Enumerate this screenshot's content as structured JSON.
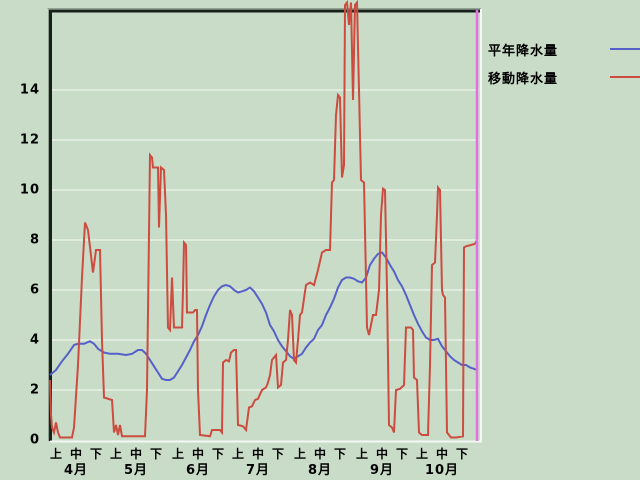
{
  "window": {
    "background_color": "#c9dcc8",
    "plot_frame": {
      "dark_edge_color": "#18201a",
      "bevel_shadow_color": "#93a193",
      "light_edge_color": "#f2f8f2",
      "gridline_color": "#e8f2e6"
    }
  },
  "legend": {
    "items": [
      {
        "label": "平年降水量",
        "color": "#5560c8"
      },
      {
        "label": "移動降水量",
        "color": "#cc4c40"
      }
    ]
  },
  "chart_data": {
    "type": "line",
    "title": "",
    "xlabel": "",
    "ylabel": "",
    "x_unit": "days from April 1; x-axis labeled by month (4月-10月) and ten-day periods 上/中/下",
    "y_ticks": [
      0,
      2,
      4,
      6,
      8,
      10,
      12,
      14
    ],
    "ylim": [
      0,
      17.2
    ],
    "grid": "horizontal-only",
    "legend_position": "outside-top-right",
    "period_labels": [
      "上",
      "中",
      "下"
    ],
    "period_day_offsets": [
      3,
      13,
      23
    ],
    "months": [
      {
        "label": "4月",
        "start": 0,
        "days": 30
      },
      {
        "label": "5月",
        "start": 30,
        "days": 31
      },
      {
        "label": "6月",
        "start": 61,
        "days": 30
      },
      {
        "label": "7月",
        "start": 91,
        "days": 31
      },
      {
        "label": "8月",
        "start": 122,
        "days": 31
      },
      {
        "label": "9月",
        "start": 153,
        "days": 30
      },
      {
        "label": "10月",
        "start": 183,
        "days": 31
      }
    ],
    "cursor": {
      "x_day": 213.5,
      "color": "#e46ee4"
    },
    "series": [
      {
        "name": "平年降水量",
        "color": "#5560c8",
        "points": [
          [
            0,
            2.6
          ],
          [
            3,
            2.8
          ],
          [
            6,
            3.15
          ],
          [
            9,
            3.45
          ],
          [
            12,
            3.8
          ],
          [
            14,
            3.85
          ],
          [
            17,
            3.85
          ],
          [
            20,
            3.95
          ],
          [
            22,
            3.85
          ],
          [
            24,
            3.65
          ],
          [
            27,
            3.5
          ],
          [
            30,
            3.45
          ],
          [
            34,
            3.45
          ],
          [
            38,
            3.4
          ],
          [
            41,
            3.45
          ],
          [
            44,
            3.6
          ],
          [
            46,
            3.6
          ],
          [
            48,
            3.45
          ],
          [
            50,
            3.2
          ],
          [
            52,
            2.95
          ],
          [
            54,
            2.7
          ],
          [
            56,
            2.45
          ],
          [
            58,
            2.4
          ],
          [
            60,
            2.4
          ],
          [
            62,
            2.5
          ],
          [
            64,
            2.75
          ],
          [
            66,
            3.0
          ],
          [
            68,
            3.3
          ],
          [
            70,
            3.6
          ],
          [
            72,
            3.95
          ],
          [
            74,
            4.2
          ],
          [
            76,
            4.55
          ],
          [
            78,
            5.0
          ],
          [
            80,
            5.4
          ],
          [
            82,
            5.75
          ],
          [
            84,
            6.0
          ],
          [
            86,
            6.15
          ],
          [
            88,
            6.2
          ],
          [
            90,
            6.15
          ],
          [
            92,
            6.0
          ],
          [
            94,
            5.9
          ],
          [
            96,
            5.95
          ],
          [
            98,
            6.0
          ],
          [
            100,
            6.1
          ],
          [
            102,
            5.95
          ],
          [
            104,
            5.7
          ],
          [
            106,
            5.45
          ],
          [
            108,
            5.1
          ],
          [
            110,
            4.6
          ],
          [
            112,
            4.35
          ],
          [
            114,
            4.0
          ],
          [
            116,
            3.75
          ],
          [
            118,
            3.55
          ],
          [
            120,
            3.35
          ],
          [
            122,
            3.25
          ],
          [
            124,
            3.35
          ],
          [
            126,
            3.45
          ],
          [
            128,
            3.7
          ],
          [
            130,
            3.9
          ],
          [
            132,
            4.05
          ],
          [
            134,
            4.4
          ],
          [
            136,
            4.6
          ],
          [
            138,
            5.0
          ],
          [
            140,
            5.3
          ],
          [
            142,
            5.65
          ],
          [
            144,
            6.1
          ],
          [
            146,
            6.4
          ],
          [
            148,
            6.5
          ],
          [
            150,
            6.5
          ],
          [
            152,
            6.45
          ],
          [
            154,
            6.35
          ],
          [
            156,
            6.3
          ],
          [
            158,
            6.5
          ],
          [
            160,
            7.0
          ],
          [
            162,
            7.25
          ],
          [
            164,
            7.45
          ],
          [
            166,
            7.5
          ],
          [
            168,
            7.3
          ],
          [
            170,
            7.0
          ],
          [
            172,
            6.75
          ],
          [
            174,
            6.4
          ],
          [
            176,
            6.15
          ],
          [
            178,
            5.8
          ],
          [
            180,
            5.4
          ],
          [
            182,
            5.0
          ],
          [
            184,
            4.65
          ],
          [
            186,
            4.35
          ],
          [
            188,
            4.1
          ],
          [
            190,
            4.0
          ],
          [
            192,
            4.0
          ],
          [
            194,
            4.05
          ],
          [
            196,
            3.75
          ],
          [
            198,
            3.55
          ],
          [
            200,
            3.35
          ],
          [
            202,
            3.2
          ],
          [
            204,
            3.1
          ],
          [
            206,
            3.0
          ],
          [
            208,
            3.0
          ],
          [
            210,
            2.9
          ],
          [
            212,
            2.85
          ],
          [
            213.5,
            2.8
          ]
        ]
      },
      {
        "name": "移動降水量",
        "color": "#cc4c40",
        "points": [
          [
            0,
            2.4
          ],
          [
            0.5,
            1.0
          ],
          [
            1,
            0.5
          ],
          [
            2,
            0.3
          ],
          [
            3,
            0.7
          ],
          [
            4,
            0.3
          ],
          [
            5,
            0.1
          ],
          [
            11,
            0.1
          ],
          [
            12,
            0.5
          ],
          [
            14,
            3.0
          ],
          [
            16,
            6.5
          ],
          [
            17.5,
            8.7
          ],
          [
            19,
            8.4
          ],
          [
            21.5,
            6.7
          ],
          [
            23,
            7.6
          ],
          [
            25,
            7.6
          ],
          [
            26,
            4.0
          ],
          [
            27,
            1.7
          ],
          [
            31,
            1.6
          ],
          [
            32,
            0.3
          ],
          [
            33,
            0.6
          ],
          [
            34,
            0.2
          ],
          [
            35,
            0.6
          ],
          [
            36,
            0.15
          ],
          [
            47.5,
            0.15
          ],
          [
            48.5,
            2.0
          ],
          [
            50,
            11.4
          ],
          [
            51,
            11.3
          ],
          [
            51.5,
            10.9
          ],
          [
            54,
            10.9
          ],
          [
            54.5,
            8.5
          ],
          [
            55.5,
            10.9
          ],
          [
            57,
            10.8
          ],
          [
            58,
            9.0
          ],
          [
            59,
            4.5
          ],
          [
            60,
            4.4
          ],
          [
            61,
            6.5
          ],
          [
            62,
            4.5
          ],
          [
            66,
            4.5
          ],
          [
            66.5,
            6.0
          ],
          [
            67,
            7.9
          ],
          [
            68,
            7.8
          ],
          [
            68.5,
            5.1
          ],
          [
            71.5,
            5.1
          ],
          [
            72.5,
            5.2
          ],
          [
            73.5,
            5.2
          ],
          [
            74,
            2.0
          ],
          [
            75,
            0.2
          ],
          [
            80,
            0.15
          ],
          [
            81,
            0.4
          ],
          [
            85,
            0.4
          ],
          [
            86,
            0.3
          ],
          [
            86.5,
            3.1
          ],
          [
            88,
            3.2
          ],
          [
            89.5,
            3.15
          ],
          [
            90.5,
            3.5
          ],
          [
            92,
            3.6
          ],
          [
            93,
            3.6
          ],
          [
            94,
            0.6
          ],
          [
            96.5,
            0.55
          ],
          [
            98,
            0.4
          ],
          [
            99.5,
            1.3
          ],
          [
            101,
            1.35
          ],
          [
            102.5,
            1.6
          ],
          [
            104,
            1.65
          ],
          [
            106,
            2.0
          ],
          [
            108,
            2.1
          ],
          [
            109,
            2.3
          ],
          [
            110,
            2.6
          ],
          [
            111,
            3.2
          ],
          [
            112,
            3.3
          ],
          [
            113,
            3.4
          ],
          [
            114,
            2.1
          ],
          [
            115.5,
            2.2
          ],
          [
            116.5,
            3.1
          ],
          [
            118,
            3.2
          ],
          [
            119,
            4.0
          ],
          [
            120,
            5.2
          ],
          [
            121,
            5.0
          ],
          [
            122,
            3.2
          ],
          [
            123,
            3.1
          ],
          [
            124,
            4.0
          ],
          [
            125,
            5.0
          ],
          [
            126,
            5.1
          ],
          [
            128,
            6.2
          ],
          [
            130,
            6.3
          ],
          [
            132,
            6.2
          ],
          [
            134,
            6.8
          ],
          [
            136,
            7.5
          ],
          [
            138,
            7.6
          ],
          [
            140,
            7.6
          ],
          [
            141,
            10.3
          ],
          [
            142,
            10.4
          ],
          [
            143,
            13.0
          ],
          [
            144,
            13.8
          ],
          [
            145,
            13.7
          ],
          [
            146,
            10.5
          ],
          [
            147,
            11.0
          ],
          [
            147.5,
            17.4
          ],
          [
            148.5,
            17.5
          ],
          [
            149.5,
            16.6
          ],
          [
            150.5,
            17.5
          ],
          [
            151.5,
            13.6
          ],
          [
            152.5,
            17.4
          ],
          [
            153.5,
            17.5
          ],
          [
            154.5,
            14.0
          ],
          [
            155.5,
            10.4
          ],
          [
            157,
            10.3
          ],
          [
            158.5,
            4.5
          ],
          [
            159.5,
            4.2
          ],
          [
            160.5,
            4.6
          ],
          [
            161.5,
            5.0
          ],
          [
            163,
            5.0
          ],
          [
            164.5,
            6.0
          ],
          [
            165.5,
            9.0
          ],
          [
            166.5,
            10.05
          ],
          [
            167.5,
            10.0
          ],
          [
            168.5,
            6.0
          ],
          [
            169.5,
            0.6
          ],
          [
            171,
            0.5
          ],
          [
            172,
            0.3
          ],
          [
            173,
            2.0
          ],
          [
            175,
            2.05
          ],
          [
            177,
            2.2
          ],
          [
            178,
            4.5
          ],
          [
            180.5,
            4.5
          ],
          [
            181.5,
            4.4
          ],
          [
            182,
            2.5
          ],
          [
            183.5,
            2.4
          ],
          [
            184.5,
            0.3
          ],
          [
            186,
            0.2
          ],
          [
            189,
            0.2
          ],
          [
            190,
            3.0
          ],
          [
            191,
            7.0
          ],
          [
            192.5,
            7.1
          ],
          [
            193.5,
            9.0
          ],
          [
            194,
            10.1
          ],
          [
            195,
            10.0
          ],
          [
            196,
            6.0
          ],
          [
            196.5,
            5.8
          ],
          [
            197.5,
            5.7
          ],
          [
            198.5,
            0.3
          ],
          [
            200.5,
            0.1
          ],
          [
            203,
            0.1
          ],
          [
            206.5,
            0.15
          ],
          [
            207,
            7.7
          ],
          [
            208,
            7.75
          ],
          [
            210.5,
            7.8
          ],
          [
            212.5,
            7.85
          ],
          [
            213.5,
            8.0
          ]
        ]
      }
    ]
  }
}
